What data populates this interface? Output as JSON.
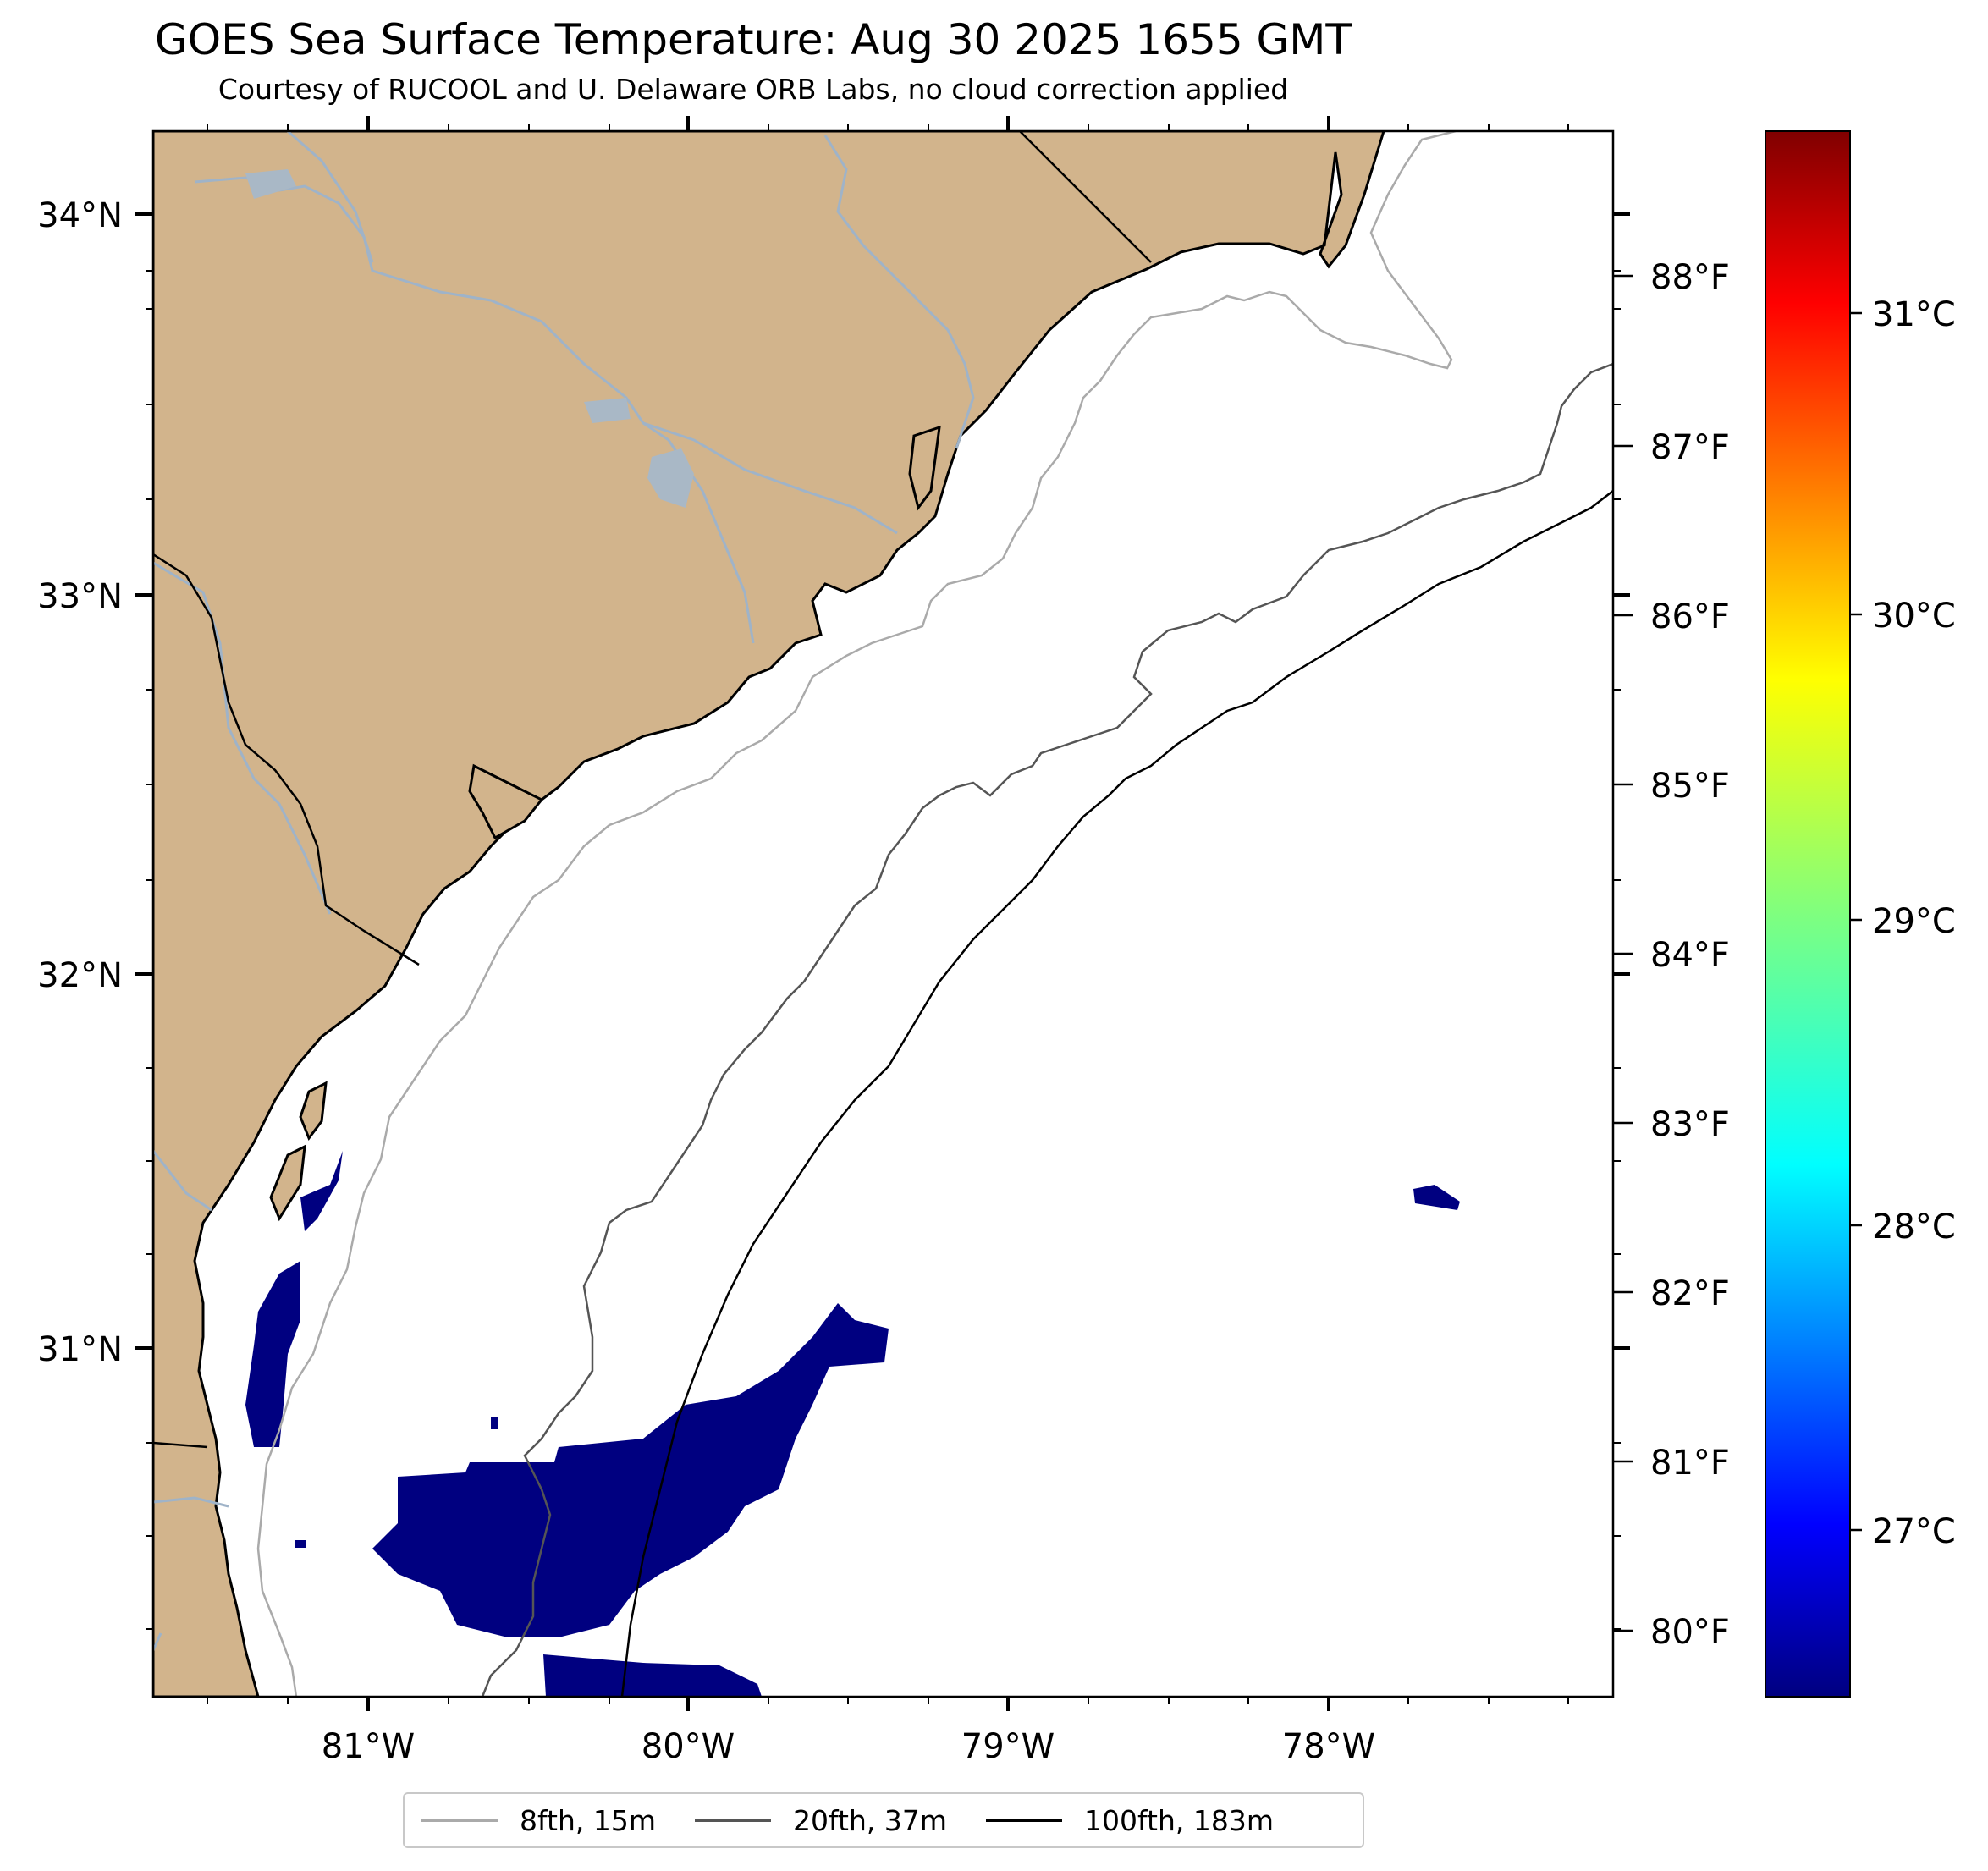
{
  "title": "GOES Sea Surface Temperature: Aug 30 2025 1655 GMT",
  "subtitle": "Courtesy of RUCOOL and U. Delaware ORB Labs, no cloud correction applied",
  "map": {
    "lat_labels": [
      "34°N",
      "33°N",
      "32°N",
      "31°N"
    ],
    "lon_labels": [
      "81°W",
      "80°W",
      "79°W",
      "78°W"
    ],
    "fahrenheit_labels": [
      "88°F",
      "87°F",
      "86°F",
      "85°F",
      "84°F",
      "83°F",
      "82°F",
      "81°F",
      "80°F"
    ],
    "land_color": "#d2b48c",
    "river_color": "#9fb3c8",
    "sst_color": "#000080"
  },
  "colorbar": {
    "celsius_labels": [
      "31°C",
      "30°C",
      "29°C",
      "28°C",
      "27°C"
    ],
    "colormap": "jet"
  },
  "legend": {
    "items": [
      {
        "label": "8fth, 15m",
        "color": "#aaaaaa"
      },
      {
        "label": "20fth, 37m",
        "color": "#555555"
      },
      {
        "label": "100fth, 183m",
        "color": "#000000"
      }
    ]
  }
}
